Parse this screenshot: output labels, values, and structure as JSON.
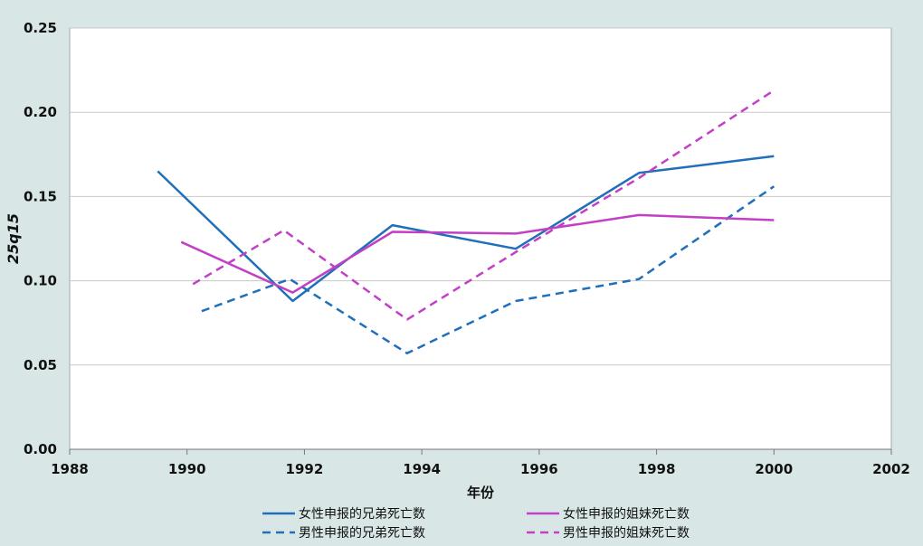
{
  "chart_data": {
    "type": "line",
    "title": "",
    "xlabel": "年份",
    "ylabel": "25q15",
    "xlim": [
      1988,
      2002
    ],
    "ylim": [
      0,
      0.25
    ],
    "x_ticks": [
      1988,
      1990,
      1992,
      1994,
      1996,
      1998,
      2000,
      2002
    ],
    "y_ticks": [
      0,
      0.05,
      0.1,
      0.15,
      0.2,
      0.25
    ],
    "x_tick_labels": [
      "1988",
      "1990",
      "1992",
      "1994",
      "1996",
      "1998",
      "2000",
      "2002"
    ],
    "y_tick_labels": [
      "0.00",
      "0.05",
      "0.10",
      "0.15",
      "0.20",
      "0.25"
    ],
    "grid": true,
    "legend_position": "bottom",
    "series": [
      {
        "name": "女性申报的兄弟死亡数",
        "color": "#1f6fba",
        "dash": "solid",
        "x": [
          1989.5,
          1991.8,
          1993.5,
          1995.6,
          1997.7,
          2000.0
        ],
        "y": [
          0.165,
          0.088,
          0.133,
          0.119,
          0.164,
          0.174
        ]
      },
      {
        "name": "男性申报的兄弟死亡数",
        "color": "#1f6fba",
        "dash": "dashed",
        "x": [
          1990.25,
          1991.75,
          1993.75,
          1995.6,
          1997.7,
          2000.0
        ],
        "y": [
          0.082,
          0.101,
          0.057,
          0.088,
          0.101,
          0.156
        ]
      },
      {
        "name": "女性申报的姐妹死亡数",
        "color": "#c23fc6",
        "dash": "solid",
        "x": [
          1989.9,
          1991.8,
          1993.5,
          1995.6,
          1997.7,
          2000.0
        ],
        "y": [
          0.123,
          0.093,
          0.129,
          0.128,
          0.139,
          0.136
        ]
      },
      {
        "name": "男性申报的姐妹死亡数",
        "color": "#c23fc6",
        "dash": "dashed",
        "x": [
          1990.1,
          1991.65,
          1993.75,
          1995.6,
          1997.7,
          2000.0
        ],
        "y": [
          0.098,
          0.13,
          0.077,
          0.117,
          0.161,
          0.213
        ]
      }
    ]
  }
}
